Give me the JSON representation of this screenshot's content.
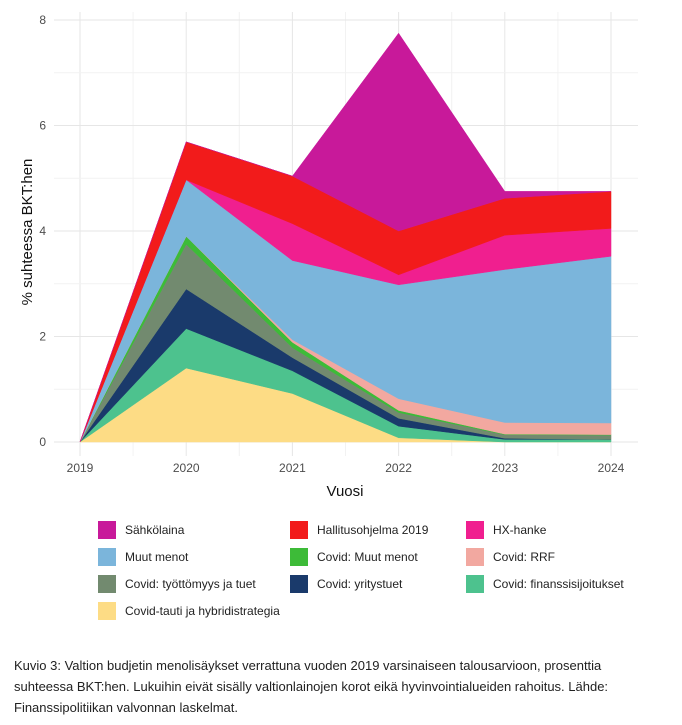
{
  "chart_data": {
    "type": "area",
    "stacked": true,
    "xlabel": "Vuosi",
    "ylabel": "% suhteessa BKT:hen",
    "x": [
      2019,
      2020,
      2021,
      2022,
      2023,
      2024
    ],
    "ylim": [
      0,
      8
    ],
    "yticks": [
      0,
      2,
      4,
      6,
      8
    ],
    "grid": true,
    "series": [
      {
        "name": "Covid-tauti ja hybridistrategia",
        "color": "#FDDC85",
        "values": [
          0,
          1.4,
          0.92,
          0.08,
          0.0,
          0.0
        ]
      },
      {
        "name": "Covid: finanssisijoitukset",
        "color": "#4DC28E",
        "values": [
          0,
          0.75,
          0.43,
          0.22,
          0.05,
          0.05
        ]
      },
      {
        "name": "Covid: yritystuet",
        "color": "#1A3A6B",
        "values": [
          0,
          0.75,
          0.25,
          0.15,
          0.02,
          0.0
        ]
      },
      {
        "name": "Covid: työttömyys ja tuet",
        "color": "#728A6F",
        "values": [
          0,
          0.85,
          0.19,
          0.11,
          0.07,
          0.08
        ]
      },
      {
        "name": "Covid: Muut menot",
        "color": "#3DBB38",
        "values": [
          0,
          0.15,
          0.1,
          0.04,
          0.01,
          0.01
        ]
      },
      {
        "name": "Covid: RRF",
        "color": "#F2A8A0",
        "values": [
          0,
          0.0,
          0.05,
          0.22,
          0.22,
          0.22
        ]
      },
      {
        "name": "Muut menot",
        "color": "#7BB5DB",
        "values": [
          0,
          1.07,
          1.5,
          2.16,
          2.9,
          3.16
        ]
      },
      {
        "name": "HX-hanke",
        "color": "#F01F8F",
        "values": [
          0,
          0.0,
          0.7,
          0.19,
          0.65,
          0.53
        ]
      },
      {
        "name": "Hallitusohjelma 2019",
        "color": "#F21B1B",
        "values": [
          0,
          0.72,
          0.9,
          0.83,
          0.7,
          0.7
        ]
      },
      {
        "name": "Sähkölaina",
        "color": "#C8199A",
        "values": [
          0,
          0.0,
          0.0,
          3.75,
          0.13,
          0.0
        ]
      }
    ]
  },
  "legend": [
    {
      "label": "Sähkölaina",
      "color": "#C8199A"
    },
    {
      "label": "Hallitusohjelma 2019",
      "color": "#F21B1B"
    },
    {
      "label": "HX-hanke",
      "color": "#F01F8F"
    },
    {
      "label": "Muut menot",
      "color": "#7BB5DB"
    },
    {
      "label": "Covid: Muut menot",
      "color": "#3DBB38"
    },
    {
      "label": "Covid: RRF",
      "color": "#F2A8A0"
    },
    {
      "label": "Covid: työttömyys ja tuet",
      "color": "#728A6F"
    },
    {
      "label": "Covid: yritystuet",
      "color": "#1A3A6B"
    },
    {
      "label": "Covid: finanssisijoitukset",
      "color": "#4DC28E"
    },
    {
      "label": "Covid-tauti ja hybridistrategia",
      "color": "#FDDC85"
    }
  ],
  "caption": "Kuvio 3: Valtion budjetin menolisäykset verrattuna vuoden 2019 varsinaiseen talousarvioon, prosenttia suhteessa BKT:hen. Lukuihin eivät sisälly valtionlainojen korot eikä hyvinvointialueiden rahoitus. Lähde: Finanssipolitiikan valvonnan laskelmat."
}
